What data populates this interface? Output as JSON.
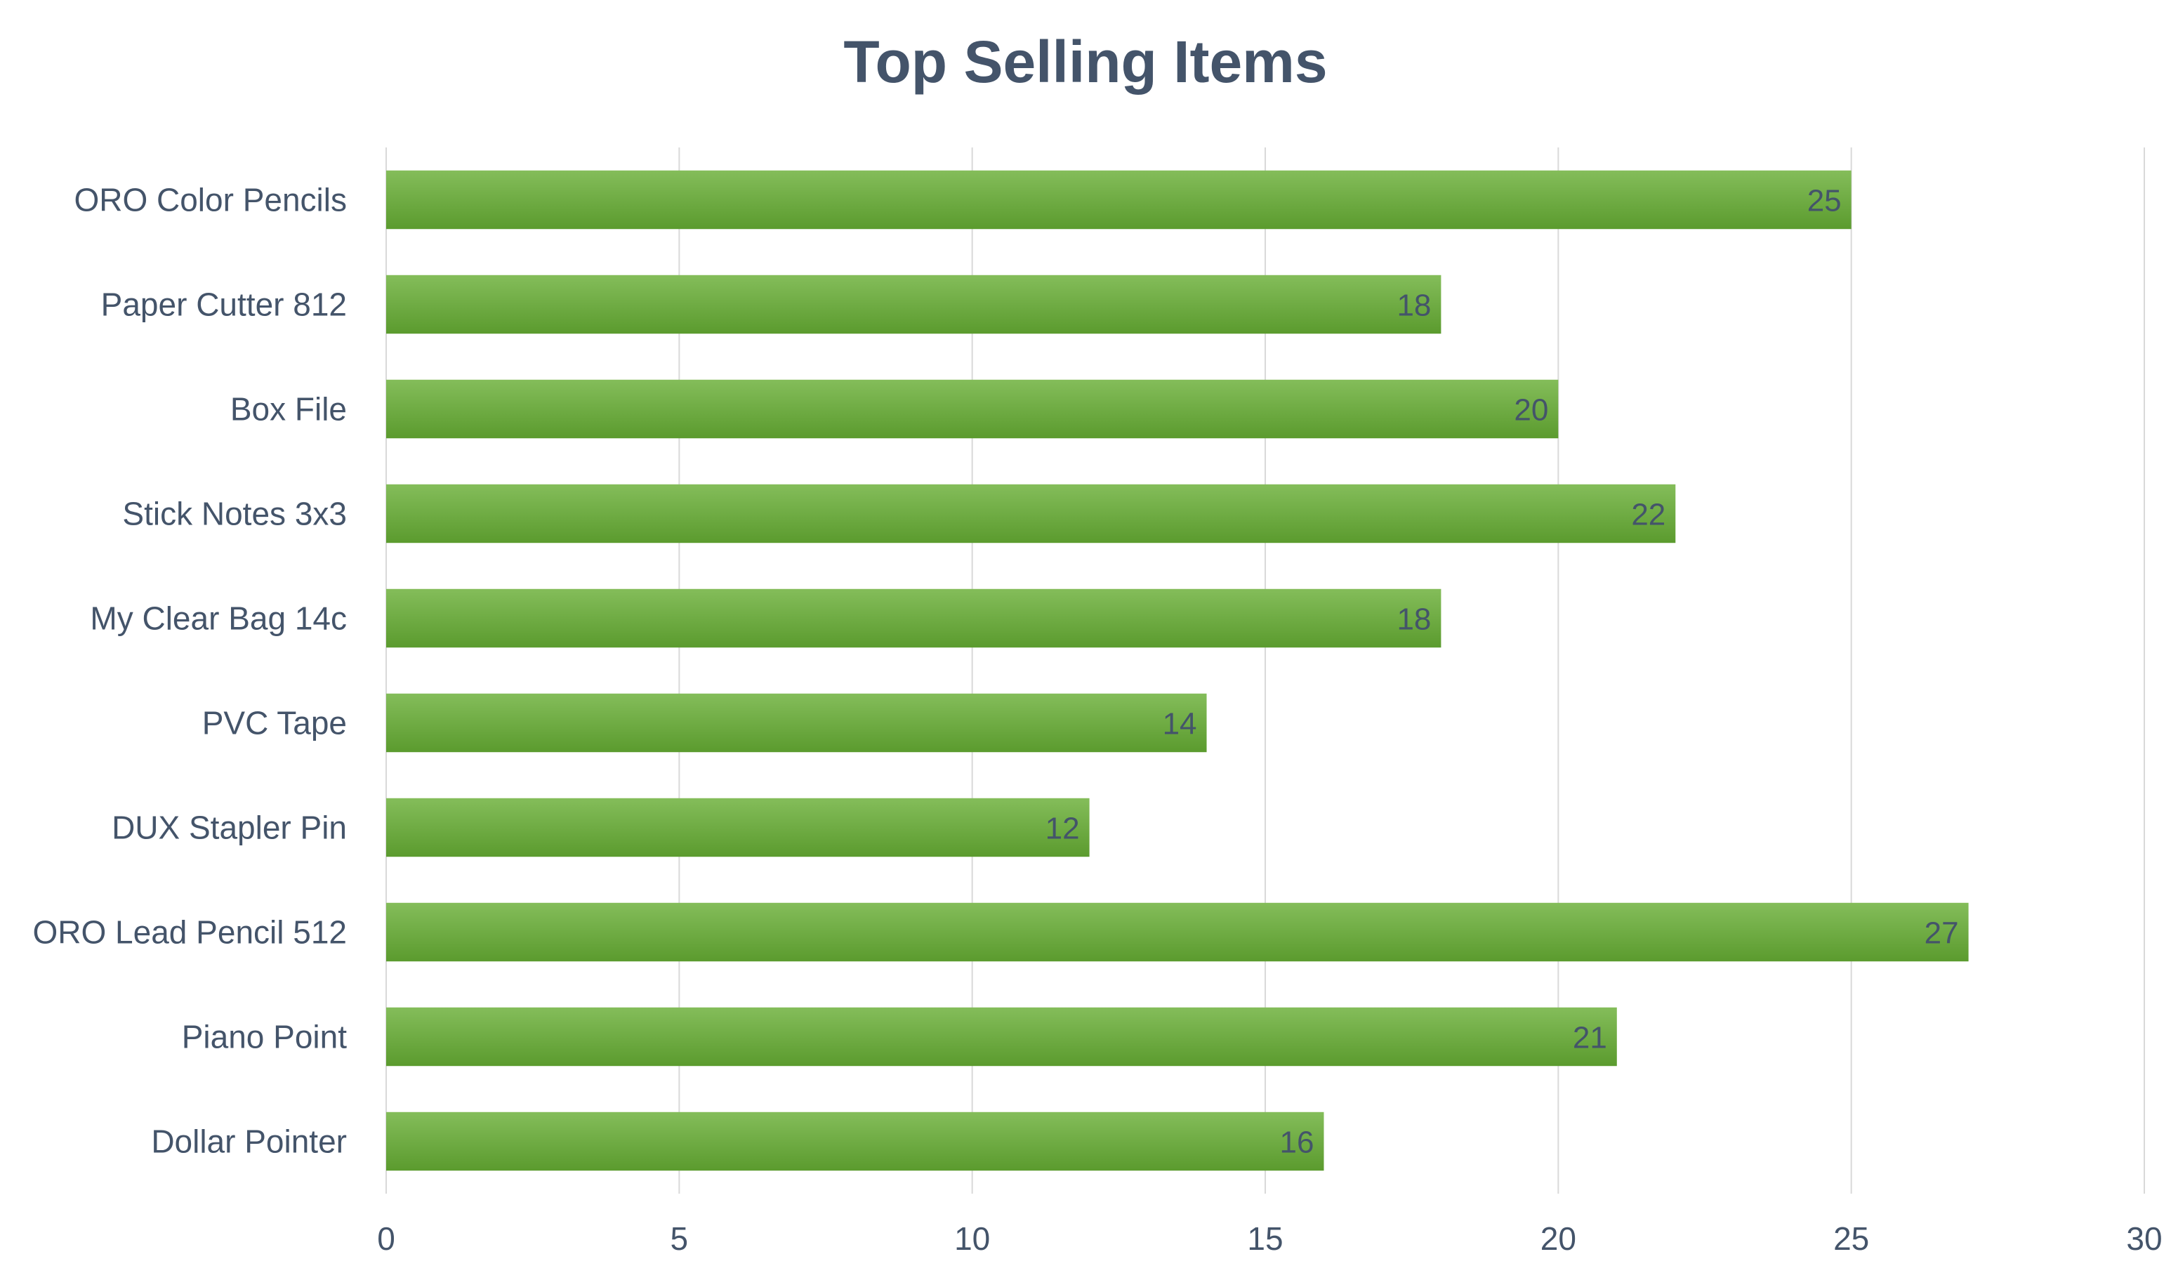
{
  "chart_data": {
    "type": "bar",
    "orientation": "horizontal",
    "title": "Top Selling Items",
    "xlabel": "",
    "ylabel": "",
    "categories": [
      "ORO Color Pencils",
      "Paper Cutter 812",
      "Box File",
      "Stick Notes 3x3",
      "My Clear Bag 14c",
      "PVC Tape",
      "DUX Stapler Pin",
      "ORO Lead Pencil 512",
      "Piano Point",
      "Dollar Pointer"
    ],
    "values": [
      25,
      18,
      20,
      22,
      18,
      14,
      12,
      27,
      21,
      16
    ],
    "xlim": [
      0,
      30
    ],
    "xticks": [
      0,
      5,
      10,
      15,
      20,
      25,
      30
    ],
    "grid": true,
    "legend": "none",
    "data_labels": true,
    "colors": {
      "bar_top": "#84bd5a",
      "bar_bottom": "#5b9b2e",
      "text": "#44546a",
      "grid": "#d9d9d9"
    }
  }
}
